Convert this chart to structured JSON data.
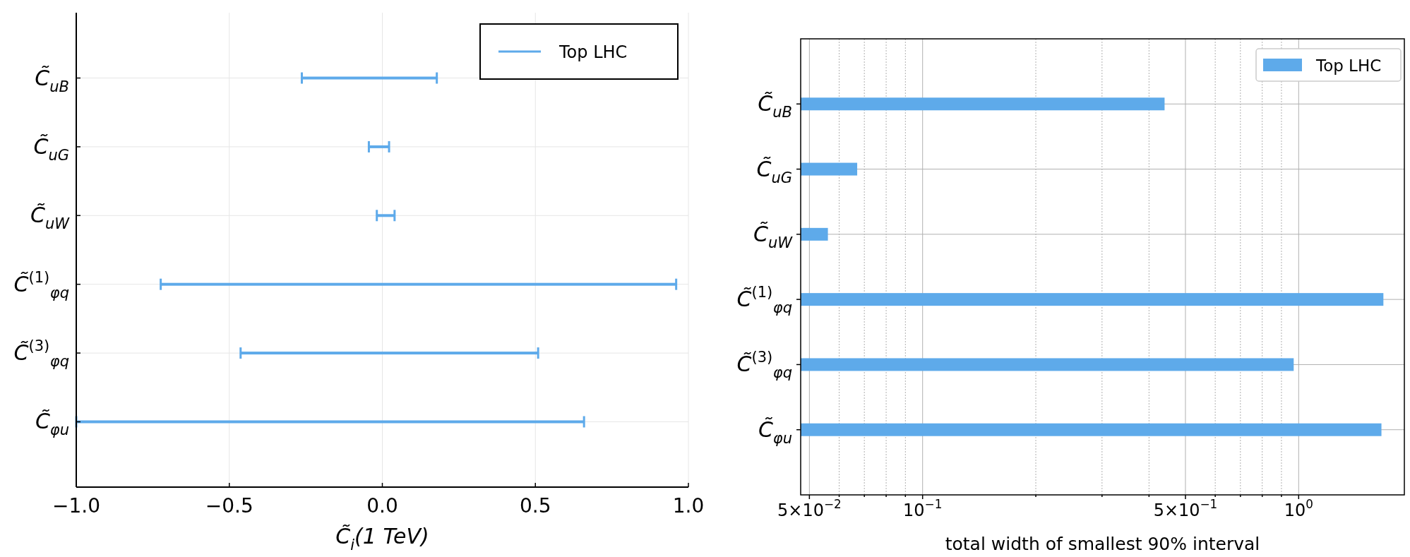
{
  "chart_data": [
    {
      "type": "bar",
      "orientation": "horizontal",
      "categories": [
        "C̃$_{uB}$",
        "C̃$_{uG}$",
        "C̃$_{uW}$",
        "C̃$^{(1)}$$_{φq}$",
        "C̃$^{(3)}$$_{φq}$",
        "C̃$_{φu}$"
      ],
      "series": [
        {
          "name": "Top LHC",
          "color": "#5eaaea",
          "base": [
            -0.263,
            -0.044,
            -0.018,
            -0.724,
            -0.463,
            -1.0
          ],
          "values": [
            0.441,
            0.066,
            0.058,
            1.684,
            0.972,
            1.659
          ]
        }
      ],
      "xlim": [
        -1,
        1
      ],
      "xticks": [
        {
          "value": -1,
          "label": "−1.0"
        },
        {
          "value": -0.5,
          "label": "−0.5"
        },
        {
          "value": 0,
          "label": "0.0"
        },
        0.5,
        {
          "value": 1,
          "label": "1.0"
        }
      ],
      "xlabel": "C̃$_{i}$(1 TeV)",
      "grid": true,
      "legend": "top right"
    },
    {
      "type": "bar",
      "orientation": "horizontal",
      "categories": [
        "C̃$_{uB}$",
        "C̃$_{uG}$",
        "C̃$_{uW}$",
        "C̃$^{(1)}$$_{φq}$",
        "C̃$^{(3)}$$_{φq}$",
        "C̃$_{φu}$"
      ],
      "series": [
        {
          "name": "Top LHC",
          "color": "#5eaaea",
          "values": [
            0.44,
            0.067,
            0.056,
            1.68,
            0.97,
            1.66
          ]
        }
      ],
      "log": "x",
      "xlim": [
        0.0474,
        1.91
      ],
      "xticks": [
        {
          "value": 0.05,
          "label": "5×10$^{−2}$"
        },
        {
          "value": 0.06,
          "label": null
        },
        {
          "value": 0.07,
          "label": null
        },
        {
          "value": 0.08,
          "label": null
        },
        {
          "value": 0.09,
          "label": null
        },
        {
          "value": 0.1,
          "label": "10$^{−1}$"
        },
        {
          "value": 0.2,
          "label": null
        },
        {
          "value": 0.3,
          "label": null
        },
        {
          "value": 0.4,
          "label": null
        },
        {
          "value": 0.5,
          "label": "5×10$^{−1}$"
        },
        {
          "value": 0.6,
          "label": null
        },
        {
          "value": 0.7,
          "label": null
        },
        {
          "value": 0.8,
          "label": null
        },
        {
          "value": 0.9,
          "label": null
        },
        {
          "value": 1,
          "label": "10$^{0}$"
        }
      ],
      "xlabel": "total width of smallest 90% interval",
      "grid": true,
      "legend": "top right"
    }
  ]
}
